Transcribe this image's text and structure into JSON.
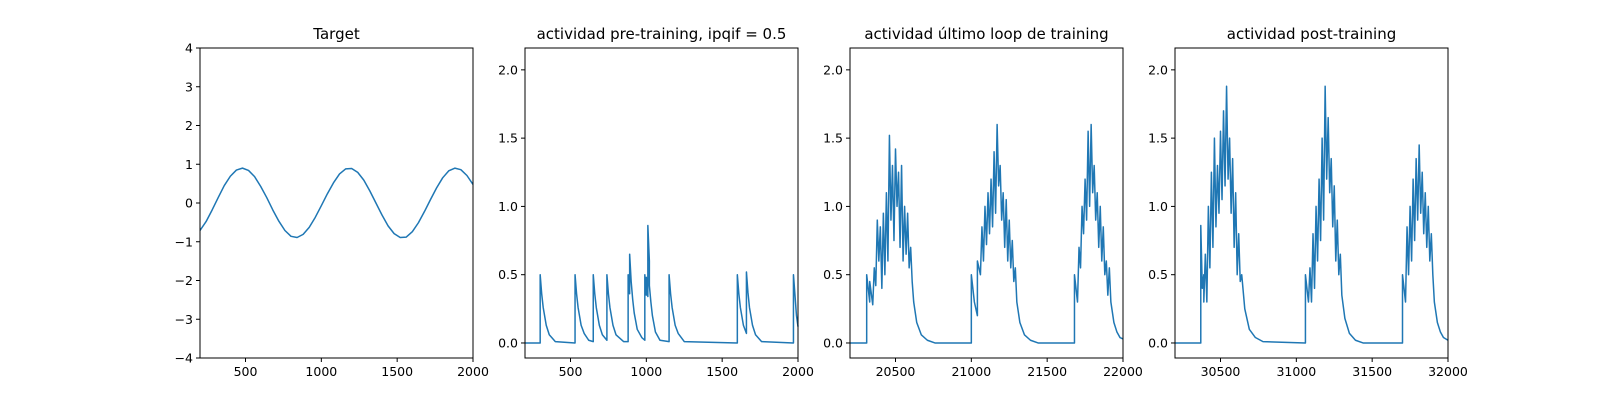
{
  "chart_data": [
    {
      "type": "line",
      "title": "Target",
      "xlim": [
        200,
        2000
      ],
      "ylim": [
        -4,
        4
      ],
      "xticks": [
        500,
        1000,
        1500,
        2000
      ],
      "yticks": [
        -4,
        -3,
        -2,
        -1,
        0,
        1,
        2,
        3,
        4
      ],
      "ytick_labels": [
        "−4",
        "−3",
        "−2",
        "−1",
        "0",
        "1",
        "2",
        "3",
        "4"
      ],
      "grid": false,
      "series": [
        {
          "color": "#1f77b4",
          "x": [
            200,
            240,
            280,
            320,
            360,
            400,
            440,
            480,
            520,
            560,
            600,
            640,
            680,
            720,
            760,
            800,
            840,
            880,
            920,
            960,
            1000,
            1040,
            1080,
            1120,
            1160,
            1200,
            1240,
            1280,
            1320,
            1360,
            1400,
            1440,
            1480,
            1520,
            1560,
            1600,
            1640,
            1680,
            1720,
            1760,
            1800,
            1840,
            1880,
            1920,
            1960,
            2000
          ],
          "y": [
            -0.71,
            -0.48,
            -0.18,
            0.14,
            0.45,
            0.69,
            0.85,
            0.9,
            0.84,
            0.68,
            0.43,
            0.14,
            -0.18,
            -0.47,
            -0.71,
            -0.86,
            -0.89,
            -0.81,
            -0.63,
            -0.37,
            -0.07,
            0.24,
            0.52,
            0.75,
            0.88,
            0.89,
            0.79,
            0.59,
            0.31,
            0.0,
            -0.31,
            -0.59,
            -0.79,
            -0.89,
            -0.88,
            -0.74,
            -0.51,
            -0.22,
            0.09,
            0.39,
            0.65,
            0.83,
            0.9,
            0.86,
            0.71,
            0.48
          ]
        }
      ]
    },
    {
      "type": "line",
      "title": "actividad pre-training, ipqif = 0.5",
      "xlim": [
        200,
        2000
      ],
      "ylim": [
        -0.11,
        2.16
      ],
      "xticks": [
        500,
        1000,
        1500,
        2000
      ],
      "yticks": [
        0.0,
        0.5,
        1.0,
        1.5,
        2.0
      ],
      "ytick_labels": [
        "0.0",
        "0.5",
        "1.0",
        "1.5",
        "2.0"
      ],
      "grid": false,
      "series": [
        {
          "color": "#1f77b4",
          "x": [
            200,
            300,
            300,
            310,
            320,
            340,
            360,
            400,
            530,
            530,
            540,
            550,
            570,
            590,
            620,
            650,
            650,
            660,
            670,
            690,
            710,
            740,
            740,
            750,
            760,
            780,
            800,
            850,
            880,
            880,
            890,
            890,
            900,
            910,
            920,
            940,
            970,
            990,
            990,
            1000,
            1000,
            1010,
            1010,
            1020,
            1020,
            1030,
            1040,
            1060,
            1090,
            1150,
            1150,
            1160,
            1170,
            1190,
            1210,
            1250,
            1600,
            1600,
            1610,
            1620,
            1640,
            1660,
            1660,
            1670,
            1680,
            1700,
            1720,
            1760,
            1970,
            1970,
            1980,
            1990,
            2000
          ],
          "y": [
            0,
            0,
            0.5,
            0.36,
            0.26,
            0.13,
            0.06,
            0.01,
            0,
            0.5,
            0.36,
            0.26,
            0.13,
            0.07,
            0.02,
            0.01,
            0.5,
            0.36,
            0.26,
            0.13,
            0.06,
            0.02,
            0.5,
            0.36,
            0.26,
            0.13,
            0.06,
            0.01,
            0.01,
            0.5,
            0.36,
            0.65,
            0.45,
            0.32,
            0.22,
            0.1,
            0.04,
            0.02,
            0.5,
            0.35,
            0.48,
            0.34,
            0.86,
            0.6,
            0.42,
            0.3,
            0.2,
            0.08,
            0.02,
            0.01,
            0.5,
            0.36,
            0.26,
            0.13,
            0.07,
            0.01,
            0,
            0.5,
            0.36,
            0.26,
            0.13,
            0.07,
            0.52,
            0.37,
            0.26,
            0.13,
            0.06,
            0.01,
            0,
            0.5,
            0.35,
            0.2,
            0.12
          ]
        }
      ]
    },
    {
      "type": "line",
      "title": "actividad último loop de training",
      "xlim": [
        20200,
        22000
      ],
      "ylim": [
        -0.11,
        2.16
      ],
      "xticks": [
        20500,
        21000,
        21500,
        22000
      ],
      "yticks": [
        0.0,
        0.5,
        1.0,
        1.5,
        2.0
      ],
      "ytick_labels": [
        "0.0",
        "0.5",
        "1.0",
        "1.5",
        "2.0"
      ],
      "grid": false,
      "series": [
        {
          "color": "#1f77b4",
          "x": [
            20200,
            20310,
            20310,
            20330,
            20330,
            20350,
            20360,
            20370,
            20380,
            20390,
            20400,
            20410,
            20420,
            20430,
            20440,
            20450,
            20460,
            20470,
            20480,
            20490,
            20500,
            20510,
            20520,
            20530,
            20540,
            20550,
            20560,
            20570,
            20580,
            20590,
            20600,
            20610,
            20620,
            20640,
            20670,
            20710,
            20760,
            21000,
            21000,
            21020,
            21040,
            21040,
            21060,
            21070,
            21080,
            21090,
            21100,
            21110,
            21120,
            21130,
            21140,
            21150,
            21160,
            21170,
            21180,
            21190,
            21200,
            21210,
            21220,
            21230,
            21240,
            21250,
            21260,
            21270,
            21280,
            21290,
            21300,
            21320,
            21350,
            21390,
            21440,
            21680,
            21680,
            21700,
            21710,
            21720,
            21730,
            21740,
            21750,
            21760,
            21770,
            21780,
            21790,
            21800,
            21810,
            21820,
            21830,
            21840,
            21850,
            21860,
            21870,
            21880,
            21890,
            21900,
            21910,
            21920,
            21940,
            21960,
            21980,
            22000
          ],
          "y": [
            0,
            0,
            0.5,
            0.3,
            0.45,
            0.28,
            0.55,
            0.42,
            0.9,
            0.6,
            0.85,
            0.4,
            0.95,
            0.5,
            1.1,
            0.6,
            1.52,
            0.9,
            1.3,
            0.75,
            1.42,
            1.0,
            1.25,
            0.7,
            1.3,
            0.6,
            1.0,
            0.65,
            0.95,
            0.55,
            0.7,
            0.45,
            0.3,
            0.15,
            0.06,
            0.02,
            0,
            0,
            0.5,
            0.3,
            0.2,
            0.6,
            0.5,
            0.85,
            0.6,
            1.0,
            0.72,
            1.1,
            0.8,
            1.2,
            0.85,
            1.4,
            0.95,
            1.6,
            1.15,
            1.3,
            0.9,
            1.1,
            0.7,
            1.05,
            0.6,
            0.9,
            0.55,
            0.75,
            0.45,
            0.55,
            0.3,
            0.15,
            0.06,
            0.02,
            0,
            0,
            0.5,
            0.3,
            0.7,
            0.55,
            1.0,
            0.8,
            1.2,
            0.9,
            1.55,
            1.0,
            1.6,
            1.1,
            1.3,
            0.9,
            1.1,
            0.7,
            1.0,
            0.6,
            0.85,
            0.5,
            0.6,
            0.35,
            0.55,
            0.3,
            0.15,
            0.08,
            0.04,
            0.03
          ]
        }
      ]
    },
    {
      "type": "line",
      "title": "actividad post-training",
      "xlim": [
        30200,
        32000
      ],
      "ylim": [
        -0.11,
        2.16
      ],
      "xticks": [
        30500,
        31000,
        31500,
        32000
      ],
      "yticks": [
        0.0,
        0.5,
        1.0,
        1.5,
        2.0
      ],
      "ytick_labels": [
        "0.0",
        "0.5",
        "1.0",
        "1.5",
        "2.0"
      ],
      "grid": false,
      "series": [
        {
          "color": "#1f77b4",
          "x": [
            30200,
            30370,
            30370,
            30380,
            30390,
            30390,
            30400,
            30410,
            30420,
            30430,
            30440,
            30450,
            30460,
            30470,
            30480,
            30490,
            30500,
            30510,
            30520,
            30530,
            30540,
            30550,
            30560,
            30570,
            30580,
            30590,
            30600,
            30610,
            30620,
            30630,
            30640,
            30660,
            30690,
            30730,
            30780,
            31060,
            31060,
            31080,
            31090,
            31100,
            31110,
            31120,
            31130,
            31140,
            31150,
            31160,
            31170,
            31180,
            31190,
            31200,
            31210,
            31220,
            31230,
            31240,
            31250,
            31260,
            31270,
            31280,
            31290,
            31300,
            31320,
            31350,
            31390,
            31440,
            31700,
            31700,
            31720,
            31730,
            31740,
            31750,
            31760,
            31770,
            31780,
            31790,
            31800,
            31810,
            31820,
            31830,
            31840,
            31850,
            31860,
            31870,
            31880,
            31890,
            31900,
            31910,
            31930,
            31950,
            31970,
            32000
          ],
          "y": [
            0,
            0,
            0.86,
            0.4,
            0.5,
            0.3,
            0.65,
            0.3,
            1.0,
            0.55,
            1.25,
            0.7,
            1.5,
            0.85,
            1.3,
            0.95,
            1.55,
            1.05,
            1.7,
            1.15,
            1.88,
            1.2,
            1.5,
            0.95,
            1.35,
            0.7,
            1.1,
            0.5,
            0.8,
            0.45,
            0.5,
            0.25,
            0.1,
            0.04,
            0.01,
            0,
            0.5,
            0.3,
            0.55,
            0.3,
            0.8,
            0.4,
            1.0,
            0.6,
            1.2,
            0.75,
            1.5,
            0.9,
            1.88,
            1.2,
            1.65,
            1.1,
            1.35,
            0.85,
            1.15,
            0.6,
            0.9,
            0.5,
            0.65,
            0.35,
            0.18,
            0.07,
            0.02,
            0,
            0,
            0.5,
            0.3,
            0.85,
            0.5,
            1.0,
            0.6,
            1.2,
            0.75,
            1.35,
            0.9,
            1.45,
            0.95,
            1.25,
            0.8,
            1.1,
            0.7,
            1.0,
            0.6,
            0.8,
            0.5,
            0.3,
            0.15,
            0.08,
            0.04,
            0.02
          ]
        }
      ]
    }
  ]
}
